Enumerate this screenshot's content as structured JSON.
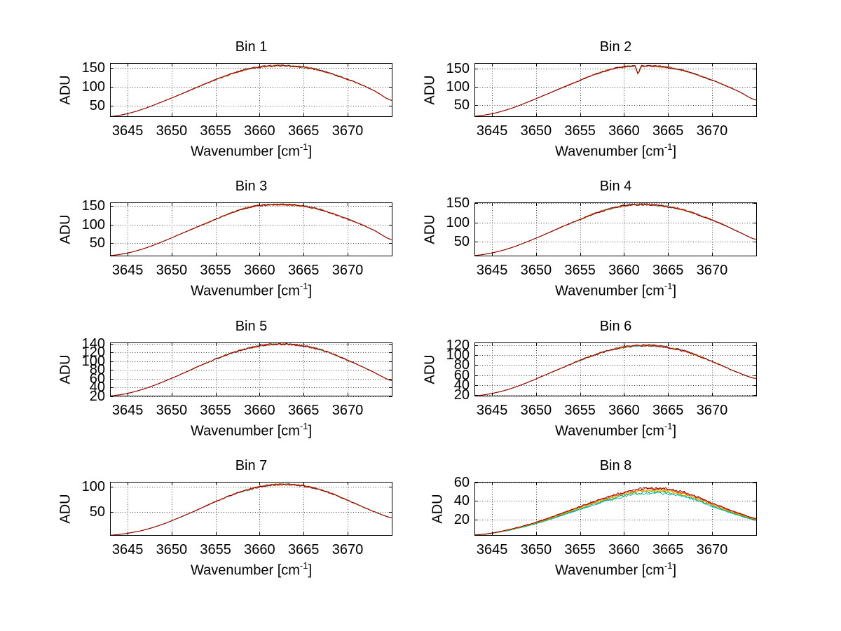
{
  "figure": {
    "background": "#ffffff",
    "xlabel": {
      "pre": "Wavenumber [cm",
      "sup": "-1",
      "post": "]"
    },
    "grid_color": "#404040",
    "axis_color": "#000000"
  },
  "chart_data": [
    {
      "type": "line",
      "title": "Bin 1",
      "ylabel": "ADU",
      "xlabel": "Wavenumber [cm^-1]",
      "grid": true,
      "legend": "none",
      "xlim": [
        3643,
        3675.1
      ],
      "ylim": [
        20,
        163
      ],
      "xticks": [
        3645,
        3650,
        3655,
        3660,
        3665,
        3670
      ],
      "yticks": [
        50,
        100,
        150
      ],
      "anchors_x": [
        3643,
        3645,
        3647,
        3649,
        3651,
        3653,
        3655,
        3657,
        3659,
        3661,
        3663,
        3665,
        3667,
        3669,
        3671,
        3673,
        3675
      ],
      "anchors_y": [
        21,
        29,
        43,
        61,
        80,
        100,
        119,
        136,
        149,
        155,
        156,
        152,
        143,
        128,
        111,
        90,
        64
      ],
      "noise": 2.4,
      "dip": null,
      "series": [
        {
          "name": "trace-cyan",
          "color": "#00b7b7",
          "scale": 1.0
        },
        {
          "name": "trace-orange",
          "color": "#d49900",
          "scale": 0.998
        },
        {
          "name": "trace-red",
          "color": "#cc1111",
          "scale": 1.0
        },
        {
          "name": "trace-darkred",
          "color": "#8c0000",
          "scale": 0.998
        }
      ]
    },
    {
      "type": "line",
      "title": "Bin 2",
      "ylabel": "ADU",
      "xlabel": "Wavenumber [cm^-1]",
      "grid": true,
      "legend": "none",
      "xlim": [
        3643,
        3675.1
      ],
      "ylim": [
        18,
        165
      ],
      "xticks": [
        3645,
        3650,
        3655,
        3660,
        3665,
        3670
      ],
      "yticks": [
        50,
        100,
        150
      ],
      "anchors_x": [
        3643,
        3645,
        3647,
        3649,
        3651,
        3653,
        3655,
        3657,
        3659,
        3661,
        3663,
        3665,
        3667,
        3669,
        3671,
        3673,
        3675
      ],
      "anchors_y": [
        20,
        27,
        40,
        58,
        78,
        98,
        118,
        137,
        151,
        157,
        157,
        153,
        143,
        127,
        109,
        88,
        64
      ],
      "noise": 2.4,
      "dip": {
        "x": 3661.6,
        "depth": 24,
        "width": 0.35
      },
      "series": [
        {
          "name": "trace-cyan",
          "color": "#00b7b7",
          "scale": 1.0
        },
        {
          "name": "trace-orange",
          "color": "#d49900",
          "scale": 0.998
        },
        {
          "name": "trace-red",
          "color": "#cc1111",
          "scale": 1.0
        },
        {
          "name": "trace-darkred",
          "color": "#8c0000",
          "scale": 0.998
        }
      ]
    },
    {
      "type": "line",
      "title": "Bin 3",
      "ylabel": "ADU",
      "xlabel": "Wavenumber [cm^-1]",
      "grid": true,
      "legend": "none",
      "xlim": [
        3643,
        3675.1
      ],
      "ylim": [
        15,
        160
      ],
      "xticks": [
        3645,
        3650,
        3655,
        3660,
        3665,
        3670
      ],
      "yticks": [
        50,
        100,
        150
      ],
      "anchors_x": [
        3643,
        3645,
        3647,
        3649,
        3651,
        3653,
        3655,
        3657,
        3659,
        3661,
        3663,
        3665,
        3667,
        3669,
        3671,
        3673,
        3675
      ],
      "anchors_y": [
        17,
        24,
        37,
        55,
        75,
        95,
        115,
        134,
        148,
        154,
        154,
        150,
        140,
        124,
        106,
        85,
        60
      ],
      "noise": 2.4,
      "dip": null,
      "series": [
        {
          "name": "trace-cyan",
          "color": "#00b7b7",
          "scale": 1.0
        },
        {
          "name": "trace-orange",
          "color": "#d49900",
          "scale": 0.998
        },
        {
          "name": "trace-red",
          "color": "#cc1111",
          "scale": 1.0
        },
        {
          "name": "trace-darkred",
          "color": "#8c0000",
          "scale": 0.998
        }
      ]
    },
    {
      "type": "line",
      "title": "Bin 4",
      "ylabel": "ADU",
      "xlabel": "Wavenumber [cm^-1]",
      "grid": true,
      "legend": "none",
      "xlim": [
        3643,
        3675.1
      ],
      "ylim": [
        12,
        152
      ],
      "xticks": [
        3645,
        3650,
        3655,
        3660,
        3665,
        3670
      ],
      "yticks": [
        50,
        100,
        150
      ],
      "anchors_x": [
        3643,
        3645,
        3647,
        3649,
        3651,
        3653,
        3655,
        3657,
        3659,
        3661,
        3663,
        3665,
        3667,
        3669,
        3671,
        3673,
        3675
      ],
      "anchors_y": [
        14,
        21,
        33,
        50,
        69,
        89,
        108,
        126,
        139,
        146,
        146,
        141,
        131,
        115,
        97,
        76,
        56
      ],
      "noise": 2.6,
      "dip": null,
      "series": [
        {
          "name": "trace-cyan",
          "color": "#00b7b7",
          "scale": 1.0
        },
        {
          "name": "trace-orange",
          "color": "#d49900",
          "scale": 0.998
        },
        {
          "name": "trace-red",
          "color": "#cc1111",
          "scale": 1.0
        },
        {
          "name": "trace-darkred",
          "color": "#8c0000",
          "scale": 0.998
        }
      ]
    },
    {
      "type": "line",
      "title": "Bin 5",
      "ylabel": "ADU",
      "xlabel": "Wavenumber [cm^-1]",
      "grid": true,
      "legend": "none",
      "xlim": [
        3643,
        3675.1
      ],
      "ylim": [
        20,
        143
      ],
      "xticks": [
        3645,
        3650,
        3655,
        3660,
        3665,
        3670
      ],
      "yticks": [
        20,
        40,
        60,
        80,
        100,
        120,
        140
      ],
      "anchors_x": [
        3643,
        3645,
        3647,
        3649,
        3651,
        3653,
        3655,
        3657,
        3659,
        3661,
        3663,
        3665,
        3667,
        3669,
        3671,
        3673,
        3675
      ],
      "anchors_y": [
        21,
        27,
        38,
        53,
        70,
        88,
        105,
        120,
        131,
        138,
        139,
        135,
        126,
        111,
        94,
        75,
        56
      ],
      "noise": 2.2,
      "dip": null,
      "series": [
        {
          "name": "trace-cyan",
          "color": "#00b7b7",
          "scale": 1.0
        },
        {
          "name": "trace-orange",
          "color": "#d49900",
          "scale": 0.998
        },
        {
          "name": "trace-red",
          "color": "#cc1111",
          "scale": 1.0
        },
        {
          "name": "trace-darkred",
          "color": "#8c0000",
          "scale": 0.998
        }
      ]
    },
    {
      "type": "line",
      "title": "Bin 6",
      "ylabel": "ADU",
      "xlabel": "Wavenumber [cm^-1]",
      "grid": true,
      "legend": "none",
      "xlim": [
        3643,
        3675.1
      ],
      "ylim": [
        17,
        126
      ],
      "xticks": [
        3645,
        3650,
        3655,
        3660,
        3665,
        3670
      ],
      "yticks": [
        20,
        40,
        60,
        80,
        100,
        120
      ],
      "anchors_x": [
        3643,
        3645,
        3647,
        3649,
        3651,
        3653,
        3655,
        3657,
        3659,
        3661,
        3663,
        3665,
        3667,
        3669,
        3671,
        3673,
        3675
      ],
      "anchors_y": [
        18,
        23,
        32,
        45,
        60,
        75,
        90,
        103,
        113,
        119,
        120,
        116,
        108,
        95,
        80,
        65,
        53
      ],
      "noise": 2.2,
      "dip": null,
      "series": [
        {
          "name": "trace-cyan",
          "color": "#00b7b7",
          "scale": 1.0
        },
        {
          "name": "trace-orange",
          "color": "#d49900",
          "scale": 0.998
        },
        {
          "name": "trace-red",
          "color": "#cc1111",
          "scale": 1.0
        },
        {
          "name": "trace-darkred",
          "color": "#8c0000",
          "scale": 0.998
        }
      ]
    },
    {
      "type": "line",
      "title": "Bin 7",
      "ylabel": "ADU",
      "xlabel": "Wavenumber [cm^-1]",
      "grid": true,
      "legend": "none",
      "xlim": [
        3643,
        3675.1
      ],
      "ylim": [
        3,
        110
      ],
      "xticks": [
        3645,
        3650,
        3655,
        3660,
        3665,
        3670
      ],
      "yticks": [
        50,
        100
      ],
      "anchors_x": [
        3643,
        3645,
        3647,
        3649,
        3651,
        3653,
        3655,
        3657,
        3659,
        3661,
        3663,
        3665,
        3667,
        3669,
        3671,
        3673,
        3675
      ],
      "anchors_y": [
        4,
        8,
        15,
        26,
        40,
        55,
        71,
        85,
        96,
        103,
        105,
        102,
        94,
        81,
        66,
        51,
        39
      ],
      "noise": 2.0,
      "dip": null,
      "series": [
        {
          "name": "trace-cyan",
          "color": "#00b7b7",
          "scale": 0.997
        },
        {
          "name": "trace-yellow",
          "color": "#e0a000",
          "scale": 1.0
        },
        {
          "name": "trace-red",
          "color": "#cc1111",
          "scale": 1.0
        },
        {
          "name": "trace-darkred",
          "color": "#8c0000",
          "scale": 0.998
        }
      ]
    },
    {
      "type": "line",
      "title": "Bin 8",
      "ylabel": "ADU",
      "xlabel": "Wavenumber [cm^-1]",
      "grid": true,
      "legend": "none",
      "xlim": [
        3643,
        3675.1
      ],
      "ylim": [
        2,
        61
      ],
      "xticks": [
        3645,
        3650,
        3655,
        3660,
        3665,
        3670
      ],
      "yticks": [
        20,
        40,
        60
      ],
      "anchors_x": [
        3643,
        3645,
        3647,
        3649,
        3651,
        3653,
        3655,
        3657,
        3659,
        3661,
        3663,
        3665,
        3667,
        3669,
        3671,
        3673,
        3675
      ],
      "anchors_y": [
        3,
        5,
        9,
        14,
        20,
        27,
        34,
        41,
        47,
        52,
        54,
        53,
        49,
        42,
        34,
        27,
        21
      ],
      "noise": 1.6,
      "dip": null,
      "series": [
        {
          "name": "trace-cyan",
          "color": "#00b4c8",
          "scale": 0.9
        },
        {
          "name": "trace-green",
          "color": "#00a844",
          "scale": 0.925
        },
        {
          "name": "trace-yellow",
          "color": "#c2c200",
          "scale": 0.95
        },
        {
          "name": "trace-orange",
          "color": "#ff9000",
          "scale": 0.968
        },
        {
          "name": "trace-red",
          "color": "#e02800",
          "scale": 0.985
        },
        {
          "name": "trace-darkred",
          "color": "#8c0000",
          "scale": 1.0
        }
      ]
    }
  ]
}
